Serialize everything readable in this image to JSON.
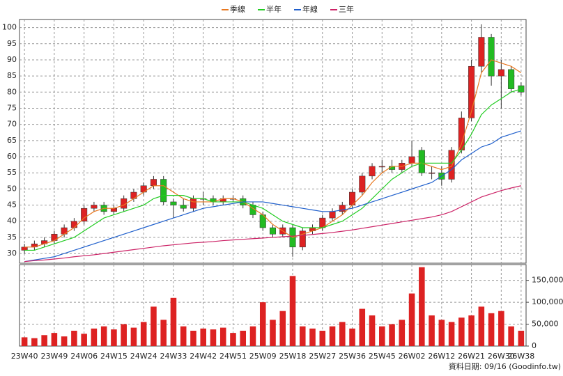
{
  "chart_data": {
    "type": "candlestick",
    "categories": [
      "23W40",
      null,
      null,
      "23W49",
      null,
      null,
      "24W06",
      null,
      null,
      "24W15",
      null,
      null,
      "24W24",
      null,
      null,
      "24W33",
      null,
      null,
      "24W42",
      null,
      null,
      "24W51",
      null,
      null,
      "25W09",
      null,
      null,
      "25W18",
      null,
      null,
      "25W27",
      null,
      null,
      "25W36",
      null,
      null,
      "25W45",
      null,
      null,
      "26W02",
      null,
      null,
      "26W12",
      null,
      null,
      "26W21",
      null,
      null,
      "26W30",
      null,
      "26W38"
    ],
    "open": [
      31,
      32,
      33,
      34,
      36,
      38,
      40,
      44,
      45,
      43,
      44,
      47,
      49,
      51,
      53,
      46,
      45,
      44,
      47,
      47,
      46,
      47,
      47,
      45,
      42,
      38,
      36,
      38,
      32,
      37,
      38,
      41,
      43,
      45,
      49,
      54,
      57,
      57,
      56,
      58,
      62,
      55,
      55,
      53,
      62,
      72,
      88,
      97,
      85,
      87,
      82
    ],
    "high": [
      33,
      34,
      35,
      37,
      39,
      41,
      45,
      46,
      46,
      45,
      48,
      50,
      52,
      54,
      54,
      47,
      47,
      48,
      49,
      48,
      48,
      48,
      48,
      46,
      43,
      39,
      39,
      39,
      38,
      39,
      42,
      44,
      46,
      50,
      55,
      58,
      59,
      59,
      59,
      65,
      63,
      57,
      57,
      63,
      74,
      90,
      101,
      98,
      90,
      88,
      83
    ],
    "low": [
      30,
      31,
      32,
      33,
      35,
      37,
      39,
      43,
      42,
      42,
      43,
      46,
      48,
      50,
      45,
      41,
      43,
      43,
      45,
      45,
      45,
      46,
      44,
      41,
      37,
      35,
      35,
      29,
      31,
      36,
      37,
      40,
      42,
      44,
      48,
      53,
      55,
      55,
      55,
      57,
      54,
      53,
      51,
      52,
      61,
      71,
      86,
      82,
      75,
      80,
      79
    ],
    "close": [
      32,
      33,
      34,
      36,
      38,
      40,
      44,
      45,
      43,
      44,
      47,
      49,
      51,
      53,
      46,
      45,
      44,
      47,
      47,
      46,
      47,
      47,
      45,
      42,
      38,
      36,
      38,
      32,
      37,
      38,
      41,
      43,
      45,
      49,
      54,
      57,
      57,
      56,
      58,
      60,
      55,
      55,
      53,
      62,
      72,
      88,
      97,
      85,
      87,
      81,
      80
    ],
    "up_color": "#dd2222",
    "down_color": "#22bb22",
    "volume": {
      "color": "#dd2222",
      "values": [
        20000,
        18000,
        25000,
        30000,
        22000,
        35000,
        28000,
        40000,
        45000,
        38000,
        50000,
        42000,
        55000,
        90000,
        60000,
        110000,
        45000,
        35000,
        40000,
        38000,
        42000,
        30000,
        35000,
        45000,
        100000,
        60000,
        80000,
        160000,
        45000,
        40000,
        35000,
        45000,
        55000,
        40000,
        85000,
        70000,
        45000,
        50000,
        60000,
        120000,
        180000,
        70000,
        60000,
        55000,
        65000,
        70000,
        90000,
        75000,
        80000,
        45000,
        35000
      ]
    },
    "series": [
      {
        "name": "季線",
        "color": "#e87820",
        "values": [
          32,
          32,
          33,
          34,
          36,
          38,
          41,
          43,
          44,
          44,
          45,
          47,
          49,
          51,
          51,
          49,
          47,
          46,
          46,
          46,
          47,
          47,
          46,
          44,
          42,
          39,
          37,
          35,
          36,
          37,
          38,
          40,
          42,
          45,
          48,
          52,
          55,
          57,
          57,
          58,
          58,
          57,
          56,
          57,
          64,
          74,
          86,
          90,
          89,
          88,
          86
        ]
      },
      {
        "name": "半年",
        "color": "#22cc22",
        "values": [
          31,
          31,
          32,
          33,
          34,
          35,
          37,
          39,
          41,
          42,
          43,
          44,
          45,
          47,
          48,
          48,
          48,
          47,
          47,
          46,
          46,
          46,
          46,
          45,
          44,
          42,
          40,
          39,
          38,
          38,
          38,
          39,
          40,
          42,
          44,
          47,
          50,
          53,
          55,
          57,
          58,
          58,
          58,
          58,
          62,
          67,
          73,
          76,
          78,
          80,
          81
        ]
      },
      {
        "name": "年線",
        "color": "#1f5fcc",
        "values": [
          27.5,
          28,
          28.5,
          29,
          30,
          31,
          32,
          33,
          34,
          35,
          36,
          37,
          38,
          39,
          40,
          41,
          42,
          43,
          44,
          44.5,
          45,
          45.5,
          46,
          46,
          46,
          45.5,
          45,
          44.5,
          44,
          43.5,
          43,
          43,
          43.5,
          44,
          45,
          46,
          47,
          48,
          49,
          50,
          51,
          52,
          54,
          56,
          59,
          61,
          63,
          64,
          66,
          67,
          68
        ]
      },
      {
        "name": "三年",
        "color": "#cc2266",
        "values": [
          27.5,
          27.8,
          28,
          28.3,
          28.6,
          29,
          29.3,
          29.6,
          30,
          30.4,
          30.8,
          31.2,
          31.6,
          32,
          32.4,
          32.7,
          33,
          33.3,
          33.5,
          33.7,
          34,
          34.2,
          34.4,
          34.6,
          34.8,
          35,
          35.2,
          35.4,
          35.6,
          35.9,
          36.2,
          36.5,
          36.9,
          37.3,
          37.8,
          38.3,
          38.8,
          39.3,
          39.8,
          40.3,
          40.8,
          41.3,
          42,
          43,
          44.5,
          46,
          47.5,
          48.5,
          49.5,
          50.3,
          51
        ]
      }
    ],
    "ylim": [
      27,
      102.5
    ],
    "yticks": [
      30,
      35,
      40,
      45,
      50,
      55,
      60,
      65,
      70,
      75,
      80,
      85,
      90,
      95,
      100
    ],
    "y2lim": [
      0,
      186000
    ],
    "y2ticks": [
      0,
      {
        "value": 50000,
        "label": "50,000"
      },
      {
        "value": 100000,
        "label": "100,000"
      },
      {
        "value": 150000,
        "label": "150,000"
      }
    ],
    "grid": true,
    "note": "資料日期: 09/16  (Goodinfo.tw)"
  }
}
